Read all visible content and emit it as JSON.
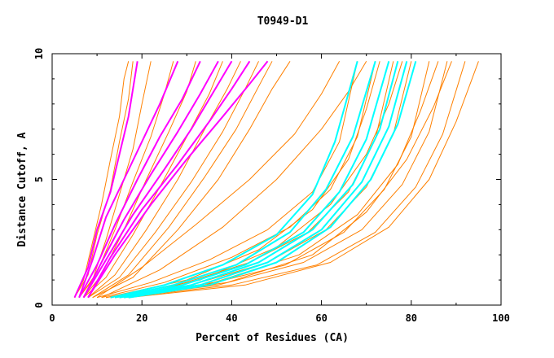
{
  "chart_data": {
    "type": "line",
    "title": "T0949-D1",
    "xlabel": "Percent of Residues (CA)",
    "ylabel": "Distance Cutoff, A",
    "xlim": [
      0,
      100
    ],
    "ylim": [
      0,
      10
    ],
    "x_ticks": [
      "0",
      "20",
      "40",
      "60",
      "80",
      "100"
    ],
    "y_ticks": [
      "0",
      "5",
      "10"
    ],
    "grid": false,
    "series_colors": {
      "group1": "#ff8000",
      "group2": "#ff00ff",
      "group3": "#00ffff"
    },
    "series": [
      {
        "group": "group1",
        "points": [
          [
            5,
            0.3
          ],
          [
            7,
            1
          ],
          [
            9,
            2.5
          ],
          [
            11,
            4
          ],
          [
            13,
            5.8
          ],
          [
            15,
            7.5
          ],
          [
            16,
            9
          ],
          [
            17,
            9.7
          ]
        ]
      },
      {
        "group": "group1",
        "points": [
          [
            5,
            0.3
          ],
          [
            8,
            1.2
          ],
          [
            10,
            2.8
          ],
          [
            13,
            4.6
          ],
          [
            15,
            6.5
          ],
          [
            17,
            8.2
          ],
          [
            18,
            9.7
          ]
        ]
      },
      {
        "group": "group1",
        "points": [
          [
            6,
            0.3
          ],
          [
            9,
            1
          ],
          [
            12,
            2.6
          ],
          [
            15,
            4.4
          ],
          [
            18,
            6.2
          ],
          [
            20,
            8
          ],
          [
            22,
            9.7
          ]
        ]
      },
      {
        "group": "group1",
        "points": [
          [
            6,
            0.3
          ],
          [
            10,
            1.3
          ],
          [
            14,
            3
          ],
          [
            18,
            4.9
          ],
          [
            22,
            6.7
          ],
          [
            25,
            8.4
          ],
          [
            27,
            9.7
          ]
        ]
      },
      {
        "group": "group1",
        "points": [
          [
            7,
            0.3
          ],
          [
            11,
            1.2
          ],
          [
            16,
            3
          ],
          [
            21,
            5
          ],
          [
            26,
            6.9
          ],
          [
            30,
            8.5
          ],
          [
            32,
            9.7
          ]
        ]
      },
      {
        "group": "group1",
        "points": [
          [
            7,
            0.3
          ],
          [
            12,
            1.1
          ],
          [
            18,
            2.8
          ],
          [
            24,
            4.7
          ],
          [
            30,
            6.7
          ],
          [
            35,
            8.4
          ],
          [
            38,
            9.7
          ]
        ]
      },
      {
        "group": "group1",
        "points": [
          [
            8,
            0.3
          ],
          [
            14,
            1.2
          ],
          [
            21,
            3
          ],
          [
            28,
            5
          ],
          [
            34,
            7
          ],
          [
            39,
            8.6
          ],
          [
            42,
            9.7
          ]
        ]
      },
      {
        "group": "group1",
        "points": [
          [
            8,
            0.3
          ],
          [
            15,
            1.1
          ],
          [
            23,
            2.9
          ],
          [
            31,
            4.9
          ],
          [
            38,
            6.9
          ],
          [
            43,
            8.6
          ],
          [
            46,
            9.7
          ]
        ]
      },
      {
        "group": "group1",
        "points": [
          [
            9,
            0.3
          ],
          [
            17,
            1.2
          ],
          [
            26,
            3.1
          ],
          [
            34,
            5.1
          ],
          [
            41,
            7
          ],
          [
            46,
            8.7
          ],
          [
            49,
            9.7
          ]
        ]
      },
      {
        "group": "group1",
        "points": [
          [
            9,
            0.3
          ],
          [
            18,
            1.1
          ],
          [
            28,
            3
          ],
          [
            37,
            5
          ],
          [
            44,
            7
          ],
          [
            49,
            8.6
          ],
          [
            53,
            9.7
          ]
        ]
      },
      {
        "group": "group1",
        "points": [
          [
            10,
            0.3
          ],
          [
            22,
            0.9
          ],
          [
            35,
            1.8
          ],
          [
            48,
            3
          ],
          [
            58,
            4.5
          ],
          [
            64,
            6.5
          ],
          [
            68,
            9.7
          ]
        ]
      },
      {
        "group": "group1",
        "points": [
          [
            11,
            0.3
          ],
          [
            25,
            0.9
          ],
          [
            40,
            1.9
          ],
          [
            53,
            3.1
          ],
          [
            62,
            4.6
          ],
          [
            68,
            6.7
          ],
          [
            72,
            9.7
          ]
        ]
      },
      {
        "group": "group1",
        "points": [
          [
            12,
            0.3
          ],
          [
            28,
            0.8
          ],
          [
            44,
            1.7
          ],
          [
            57,
            2.9
          ],
          [
            66,
            4.5
          ],
          [
            72,
            6.6
          ],
          [
            76,
            9.7
          ]
        ]
      },
      {
        "group": "group1",
        "points": [
          [
            13,
            0.3
          ],
          [
            31,
            0.8
          ],
          [
            48,
            1.7
          ],
          [
            61,
            3
          ],
          [
            70,
            4.7
          ],
          [
            76,
            6.8
          ],
          [
            80,
            9.7
          ]
        ]
      },
      {
        "group": "group1",
        "points": [
          [
            14,
            0.3
          ],
          [
            34,
            0.8
          ],
          [
            52,
            1.6
          ],
          [
            65,
            2.9
          ],
          [
            74,
            4.6
          ],
          [
            80,
            6.7
          ],
          [
            84,
            9.7
          ]
        ]
      },
      {
        "group": "group1",
        "points": [
          [
            15,
            0.3
          ],
          [
            37,
            0.8
          ],
          [
            56,
            1.7
          ],
          [
            69,
            3
          ],
          [
            78,
            4.8
          ],
          [
            84,
            6.9
          ],
          [
            88,
            9.7
          ]
        ]
      },
      {
        "group": "group1",
        "points": [
          [
            16,
            0.3
          ],
          [
            40,
            0.8
          ],
          [
            59,
            1.6
          ],
          [
            72,
            2.9
          ],
          [
            81,
            4.7
          ],
          [
            87,
            6.8
          ],
          [
            92,
            9.7
          ]
        ]
      },
      {
        "group": "group1",
        "points": [
          [
            17,
            0.3
          ],
          [
            43,
            0.8
          ],
          [
            62,
            1.7
          ],
          [
            75,
            3.1
          ],
          [
            84,
            5
          ],
          [
            90,
            7.3
          ],
          [
            95,
            9.7
          ]
        ]
      },
      {
        "group": "group1",
        "points": [
          [
            12,
            0.3
          ],
          [
            30,
            1
          ],
          [
            46,
            2.2
          ],
          [
            58,
            3.8
          ],
          [
            66,
            5.8
          ],
          [
            70,
            7.8
          ],
          [
            73,
            9.7
          ]
        ]
      },
      {
        "group": "group1",
        "points": [
          [
            13,
            0.3
          ],
          [
            33,
            1
          ],
          [
            50,
            2.3
          ],
          [
            62,
            4
          ],
          [
            70,
            6
          ],
          [
            75,
            8
          ],
          [
            78,
            9.7
          ]
        ]
      },
      {
        "group": "group1",
        "points": [
          [
            10,
            0.3
          ],
          [
            20,
            1.5
          ],
          [
            32,
            3.2
          ],
          [
            44,
            5
          ],
          [
            54,
            6.8
          ],
          [
            60,
            8.4
          ],
          [
            64,
            9.7
          ]
        ]
      },
      {
        "group": "group1",
        "points": [
          [
            11,
            0.3
          ],
          [
            24,
            1.4
          ],
          [
            38,
            3.1
          ],
          [
            50,
            5
          ],
          [
            60,
            7
          ],
          [
            66,
            8.5
          ],
          [
            70,
            9.7
          ]
        ]
      },
      {
        "group": "group1",
        "points": [
          [
            14,
            0.3
          ],
          [
            36,
            0.9
          ],
          [
            55,
            2
          ],
          [
            68,
            3.6
          ],
          [
            77,
            5.6
          ],
          [
            82,
            7.7
          ],
          [
            86,
            9.7
          ]
        ]
      },
      {
        "group": "group1",
        "points": [
          [
            15,
            0.3
          ],
          [
            39,
            0.9
          ],
          [
            58,
            2
          ],
          [
            70,
            3.7
          ],
          [
            79,
            5.8
          ],
          [
            85,
            7.9
          ],
          [
            89,
            9.7
          ]
        ]
      },
      {
        "group": "group2",
        "points": [
          [
            5,
            0.3
          ],
          [
            8,
            1.5
          ],
          [
            10,
            3
          ],
          [
            13,
            4.5
          ],
          [
            15,
            6
          ],
          [
            17,
            7.5
          ],
          [
            19,
            9.7
          ]
        ]
      },
      {
        "group": "group2",
        "points": [
          [
            6,
            0.3
          ],
          [
            9,
            1.8
          ],
          [
            12,
            3.5
          ],
          [
            16,
            5
          ],
          [
            20,
            6.5
          ],
          [
            24,
            8
          ],
          [
            28,
            9.7
          ]
        ]
      },
      {
        "group": "group2",
        "points": [
          [
            6,
            0.3
          ],
          [
            10,
            1.6
          ],
          [
            14,
            3.2
          ],
          [
            19,
            5
          ],
          [
            24,
            6.7
          ],
          [
            29,
            8.2
          ],
          [
            33,
            9.7
          ]
        ]
      },
      {
        "group": "group2",
        "points": [
          [
            7,
            0.3
          ],
          [
            11,
            1.7
          ],
          [
            16,
            3.4
          ],
          [
            22,
            5.2
          ],
          [
            28,
            6.9
          ],
          [
            33,
            8.4
          ],
          [
            37,
            9.7
          ]
        ]
      },
      {
        "group": "group2",
        "points": [
          [
            7,
            0.3
          ],
          [
            12,
            1.8
          ],
          [
            18,
            3.6
          ],
          [
            25,
            5.4
          ],
          [
            31,
            7
          ],
          [
            36,
            8.5
          ],
          [
            40,
            9.7
          ]
        ]
      },
      {
        "group": "group2",
        "points": [
          [
            8,
            0.3
          ],
          [
            13,
            1.9
          ],
          [
            20,
            3.8
          ],
          [
            28,
            5.6
          ],
          [
            35,
            7.3
          ],
          [
            40,
            8.6
          ],
          [
            44,
            9.7
          ]
        ]
      },
      {
        "group": "group2",
        "points": [
          [
            8,
            0.3
          ],
          [
            14,
            2
          ],
          [
            22,
            4
          ],
          [
            30,
            5.8
          ],
          [
            38,
            7.5
          ],
          [
            44,
            8.8
          ],
          [
            48,
            9.7
          ]
        ]
      },
      {
        "group": "group3",
        "points": [
          [
            13,
            0.3
          ],
          [
            25,
            0.8
          ],
          [
            38,
            1.6
          ],
          [
            50,
            2.8
          ],
          [
            58,
            4.4
          ],
          [
            63,
            6.5
          ],
          [
            68,
            9.7
          ]
        ]
      },
      {
        "group": "group3",
        "points": [
          [
            14,
            0.3
          ],
          [
            27,
            0.8
          ],
          [
            41,
            1.6
          ],
          [
            53,
            2.9
          ],
          [
            61,
            4.6
          ],
          [
            67,
            6.7
          ],
          [
            72,
            9.7
          ]
        ]
      },
      {
        "group": "group3",
        "points": [
          [
            15,
            0.3
          ],
          [
            29,
            0.8
          ],
          [
            43,
            1.6
          ],
          [
            56,
            2.9
          ],
          [
            64,
            4.5
          ],
          [
            70,
            6.6
          ],
          [
            75,
            9.7
          ]
        ]
      },
      {
        "group": "group3",
        "points": [
          [
            15,
            0.3
          ],
          [
            31,
            0.8
          ],
          [
            46,
            1.7
          ],
          [
            58,
            3
          ],
          [
            67,
            4.8
          ],
          [
            73,
            7
          ],
          [
            77,
            9.7
          ]
        ]
      },
      {
        "group": "group3",
        "points": [
          [
            16,
            0.3
          ],
          [
            33,
            0.8
          ],
          [
            48,
            1.7
          ],
          [
            60,
            3
          ],
          [
            69,
            4.9
          ],
          [
            75,
            7.1
          ],
          [
            79,
            9.7
          ]
        ]
      },
      {
        "group": "group3",
        "points": [
          [
            17,
            0.3
          ],
          [
            35,
            0.8
          ],
          [
            50,
            1.7
          ],
          [
            62,
            3.1
          ],
          [
            71,
            5
          ],
          [
            77,
            7.2
          ],
          [
            81,
            9.7
          ]
        ]
      }
    ]
  }
}
